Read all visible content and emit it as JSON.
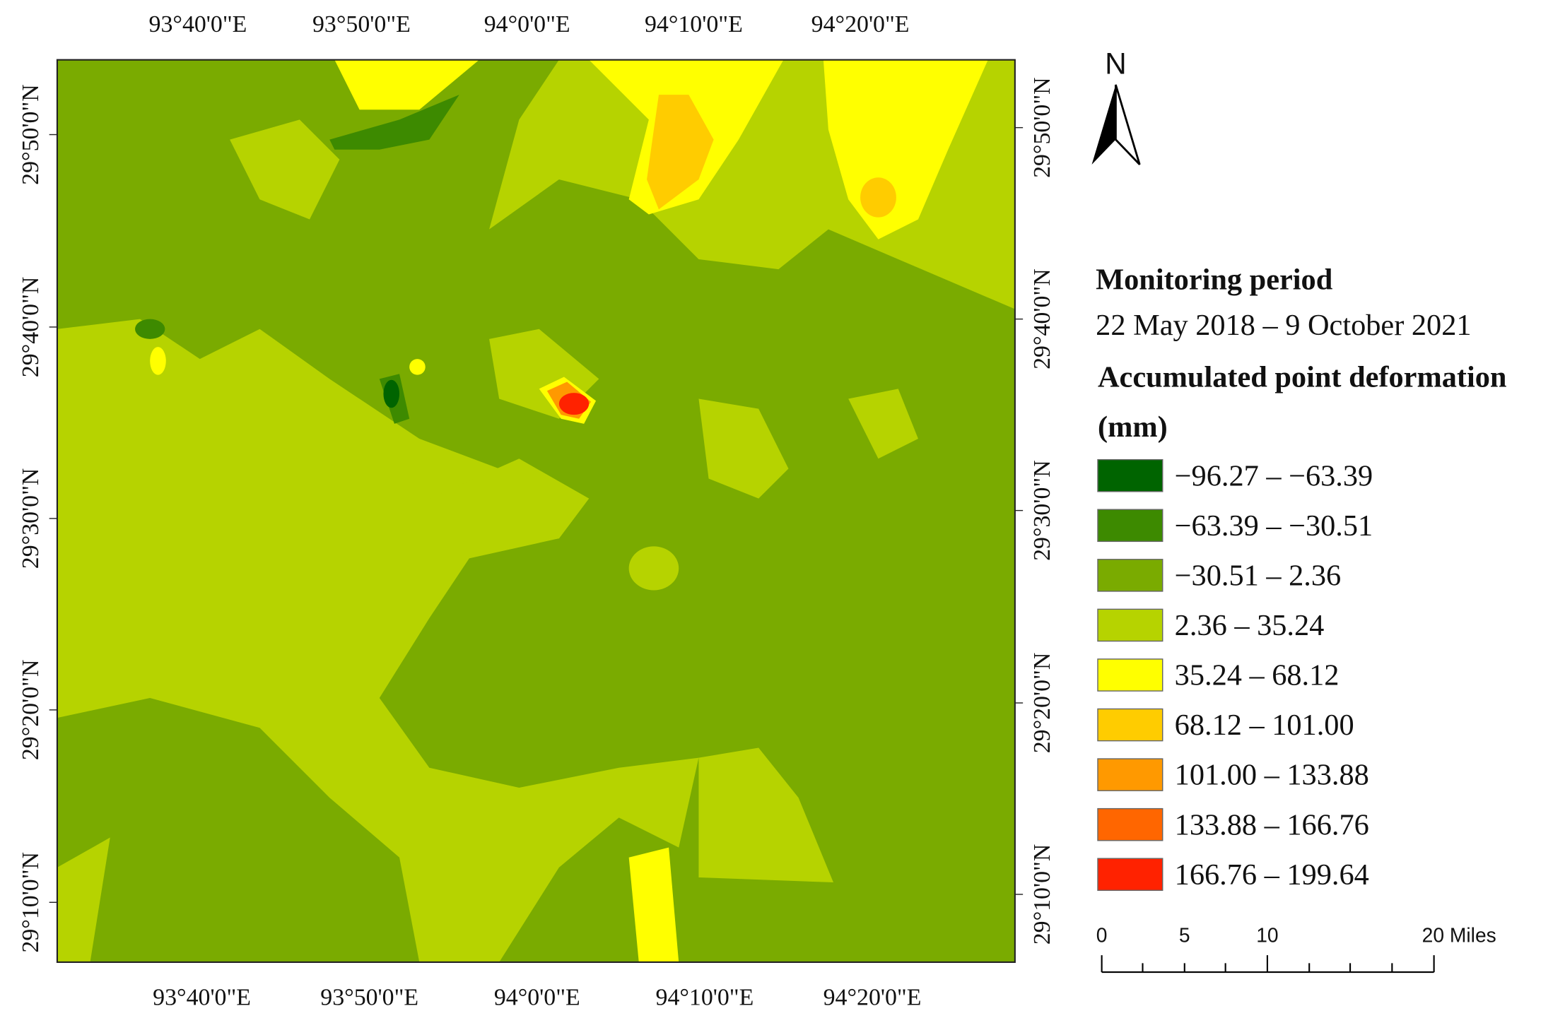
{
  "map": {
    "top_labels": [
      "93°40'0\"E",
      "93°50'0\"E",
      "94°0'0\"E",
      "94°10'0\"E",
      "94°20'0\"E"
    ],
    "bottom_labels": [
      "93°40'0\"E",
      "93°50'0\"E",
      "94°0'0\"E",
      "94°10'0\"E",
      "94°20'0\"E"
    ],
    "left_labels": [
      "29°50'0\"N",
      "29°40'0\"N",
      "29°30'0\"N",
      "29°20'0\"N",
      "29°10'0\"N"
    ],
    "right_labels": [
      "29°50'0\"N",
      "29°40'0\"N",
      "29°30'0\"N",
      "29°20'0\"N",
      "29°10'0\"N"
    ],
    "north": "N",
    "legend": {
      "period_title": "Monitoring period",
      "period": "22 May 2018 – 9 October 2021",
      "title_line1": "Accumulated point deformation",
      "title_line2": "(mm)",
      "items": [
        {
          "label": "−96.27 – −63.39",
          "color": "#006400"
        },
        {
          "label": "−63.39 – −30.51",
          "color": "#3d8a00"
        },
        {
          "label": "−30.51 – 2.36",
          "color": "#7aab00"
        },
        {
          "label": "2.36 – 35.24",
          "color": "#b6d300"
        },
        {
          "label": "35.24 – 68.12",
          "color": "#ffff00"
        },
        {
          "label": "68.12 – 101.00",
          "color": "#ffcc00"
        },
        {
          "label": "101.00 – 133.88",
          "color": "#ff9900"
        },
        {
          "label": "133.88 – 166.76",
          "color": "#ff6600"
        },
        {
          "label": "166.76 – 199.64",
          "color": "#ff2200"
        }
      ]
    },
    "scale_bar": {
      "labels": [
        "0",
        "5",
        "10",
        "20 Miles"
      ]
    }
  }
}
